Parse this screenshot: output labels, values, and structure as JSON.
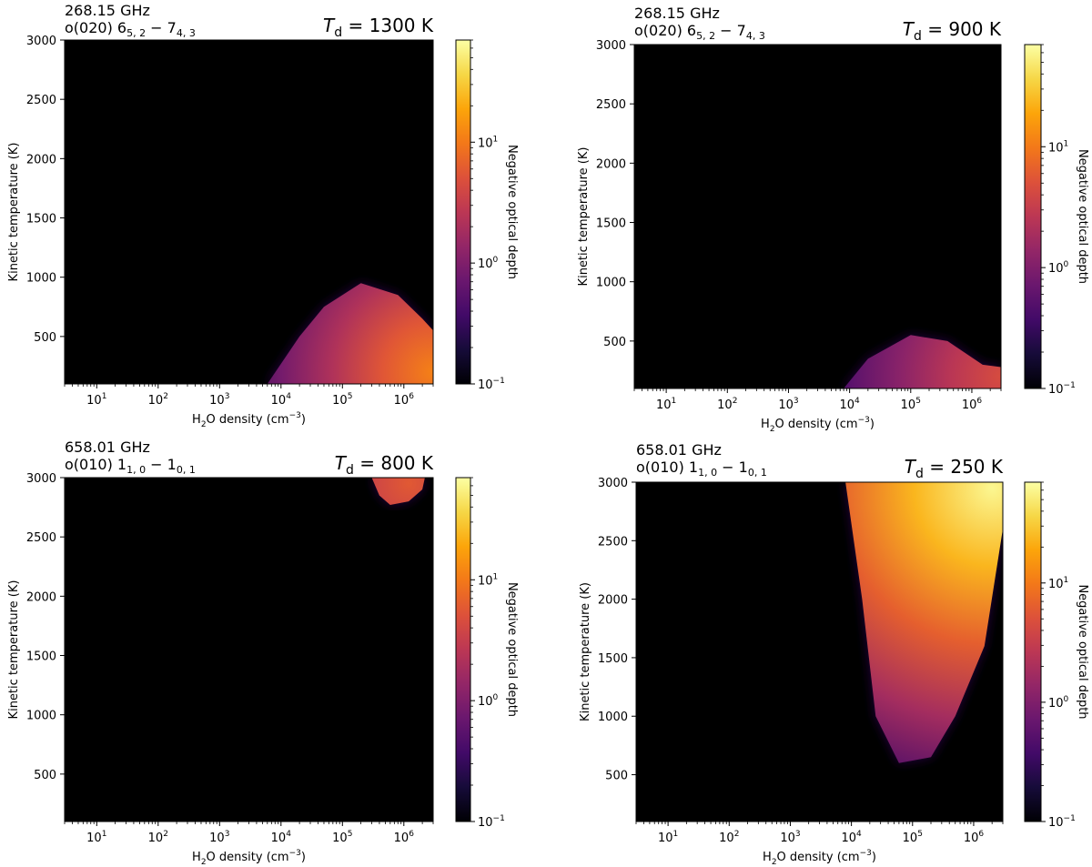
{
  "chart_data": [
    {
      "type": "heatmap",
      "frequency": "268.15 GHz",
      "transition": {
        "prefix": "o(020) ",
        "upper": "6",
        "upper_sub": "5, 2",
        "lower": "7",
        "lower_sub": "4, 3"
      },
      "dust_temperature": {
        "symbol": "T",
        "subscript": "d",
        "value": "= 1300 K"
      },
      "xlabel": {
        "pre": "H",
        "sub": "2",
        "post": "O density (cm",
        "sup": "−3",
        "end": ")"
      },
      "ylabel": "Kinetic temperature (K)",
      "x_scale": "log",
      "xlim": [
        3,
        3000000
      ],
      "ylim": [
        100,
        3000
      ],
      "x_ticks": [
        {
          "base": "10",
          "exp": "1"
        },
        {
          "base": "10",
          "exp": "2"
        },
        {
          "base": "10",
          "exp": "3"
        },
        {
          "base": "10",
          "exp": "4"
        },
        {
          "base": "10",
          "exp": "5"
        },
        {
          "base": "10",
          "exp": "6"
        }
      ],
      "y_ticks": [
        "500",
        "1000",
        "1500",
        "2000",
        "2500",
        "3000"
      ],
      "colorbar": {
        "label": "Negative optical depth",
        "scale": "log",
        "range": [
          0.1,
          70
        ],
        "colormap": "inferno",
        "ticks": [
          {
            "base": "10",
            "exp": "−1"
          },
          {
            "base": "10",
            "exp": "0"
          },
          {
            "base": "10",
            "exp": "1"
          }
        ]
      },
      "region": {
        "description_points": [
          [
            6000,
            100
          ],
          [
            20000,
            500
          ],
          [
            50000,
            750
          ],
          [
            200000,
            950
          ],
          [
            800000,
            850
          ],
          [
            2000000,
            650
          ],
          [
            3000000,
            550
          ],
          [
            3000000,
            100
          ]
        ],
        "peak": [
          3000000,
          200
        ],
        "peak_level": 0.72
      }
    },
    {
      "type": "heatmap",
      "frequency": "268.15 GHz",
      "transition": {
        "prefix": "o(020) ",
        "upper": "6",
        "upper_sub": "5, 2",
        "lower": "7",
        "lower_sub": "4, 3"
      },
      "dust_temperature": {
        "symbol": "T",
        "subscript": "d",
        "value": "= 900 K"
      },
      "xlabel": {
        "pre": "H",
        "sub": "2",
        "post": "O density (cm",
        "sup": "−3",
        "end": ")"
      },
      "ylabel": "Kinetic temperature (K)",
      "x_scale": "log",
      "xlim": [
        3,
        3000000
      ],
      "ylim": [
        100,
        3000
      ],
      "x_ticks": [
        {
          "base": "10",
          "exp": "1"
        },
        {
          "base": "10",
          "exp": "2"
        },
        {
          "base": "10",
          "exp": "3"
        },
        {
          "base": "10",
          "exp": "4"
        },
        {
          "base": "10",
          "exp": "5"
        },
        {
          "base": "10",
          "exp": "6"
        }
      ],
      "y_ticks": [
        "500",
        "1000",
        "1500",
        "2000",
        "2500",
        "3000"
      ],
      "colorbar": {
        "label": "Negative optical depth",
        "scale": "log",
        "range": [
          0.1,
          70
        ],
        "colormap": "inferno",
        "ticks": [
          {
            "base": "10",
            "exp": "−1"
          },
          {
            "base": "10",
            "exp": "0"
          },
          {
            "base": "10",
            "exp": "1"
          }
        ]
      },
      "region": {
        "description_points": [
          [
            8000,
            100
          ],
          [
            20000,
            350
          ],
          [
            100000,
            550
          ],
          [
            400000,
            500
          ],
          [
            1500000,
            300
          ],
          [
            3000000,
            280
          ],
          [
            3000000,
            100
          ]
        ],
        "peak": [
          3000000,
          200
        ],
        "peak_level": 0.58
      }
    },
    {
      "type": "heatmap",
      "frequency": "658.01 GHz",
      "transition": {
        "prefix": "o(010) ",
        "upper": "1",
        "upper_sub": "1, 0",
        "lower": "1",
        "lower_sub": "0, 1"
      },
      "dust_temperature": {
        "symbol": "T",
        "subscript": "d",
        "value": "= 800 K"
      },
      "xlabel": {
        "pre": "H",
        "sub": "2",
        "post": "O density (cm",
        "sup": "−3",
        "end": ")"
      },
      "ylabel": "Kinetic temperature (K)",
      "x_scale": "log",
      "xlim": [
        3,
        3000000
      ],
      "ylim": [
        100,
        3000
      ],
      "x_ticks": [
        {
          "base": "10",
          "exp": "1"
        },
        {
          "base": "10",
          "exp": "2"
        },
        {
          "base": "10",
          "exp": "3"
        },
        {
          "base": "10",
          "exp": "4"
        },
        {
          "base": "10",
          "exp": "5"
        },
        {
          "base": "10",
          "exp": "6"
        }
      ],
      "y_ticks": [
        "500",
        "1000",
        "1500",
        "2000",
        "2500",
        "3000"
      ],
      "colorbar": {
        "label": "Negative optical depth",
        "scale": "log",
        "range": [
          0.1,
          70
        ],
        "colormap": "inferno",
        "ticks": [
          {
            "base": "10",
            "exp": "−1"
          },
          {
            "base": "10",
            "exp": "0"
          },
          {
            "base": "10",
            "exp": "1"
          }
        ]
      },
      "region": {
        "description_points": [
          [
            300000,
            3000
          ],
          [
            400000,
            2850
          ],
          [
            600000,
            2770
          ],
          [
            1200000,
            2800
          ],
          [
            2000000,
            2900
          ],
          [
            2200000,
            3000
          ]
        ],
        "peak": [
          1200000,
          2950
        ],
        "peak_level": 0.62
      }
    },
    {
      "type": "heatmap",
      "frequency": "658.01 GHz",
      "transition": {
        "prefix": "o(010) ",
        "upper": "1",
        "upper_sub": "1, 0",
        "lower": "1",
        "lower_sub": "0, 1"
      },
      "dust_temperature": {
        "symbol": "T",
        "subscript": "d",
        "value": "= 250 K"
      },
      "xlabel": {
        "pre": "H",
        "sub": "2",
        "post": "O density (cm",
        "sup": "−3",
        "end": ")"
      },
      "ylabel": "Kinetic temperature (K)",
      "x_scale": "log",
      "xlim": [
        3,
        3000000
      ],
      "ylim": [
        100,
        3000
      ],
      "x_ticks": [
        {
          "base": "10",
          "exp": "1"
        },
        {
          "base": "10",
          "exp": "2"
        },
        {
          "base": "10",
          "exp": "3"
        },
        {
          "base": "10",
          "exp": "4"
        },
        {
          "base": "10",
          "exp": "5"
        },
        {
          "base": "10",
          "exp": "6"
        }
      ],
      "y_ticks": [
        "500",
        "1000",
        "1500",
        "2000",
        "2500",
        "3000"
      ],
      "colorbar": {
        "label": "Negative optical depth",
        "scale": "log",
        "range": [
          0.1,
          70
        ],
        "colormap": "inferno",
        "ticks": [
          {
            "base": "10",
            "exp": "−1"
          },
          {
            "base": "10",
            "exp": "0"
          },
          {
            "base": "10",
            "exp": "1"
          }
        ]
      },
      "region": {
        "description_points": [
          [
            8000,
            3000
          ],
          [
            15000,
            2000
          ],
          [
            25000,
            1000
          ],
          [
            60000,
            600
          ],
          [
            200000,
            650
          ],
          [
            500000,
            1000
          ],
          [
            1500000,
            1600
          ],
          [
            3000000,
            2600
          ],
          [
            3000000,
            3000
          ]
        ],
        "peak": [
          2000000,
          2950
        ],
        "peak_level": 0.98
      }
    }
  ]
}
